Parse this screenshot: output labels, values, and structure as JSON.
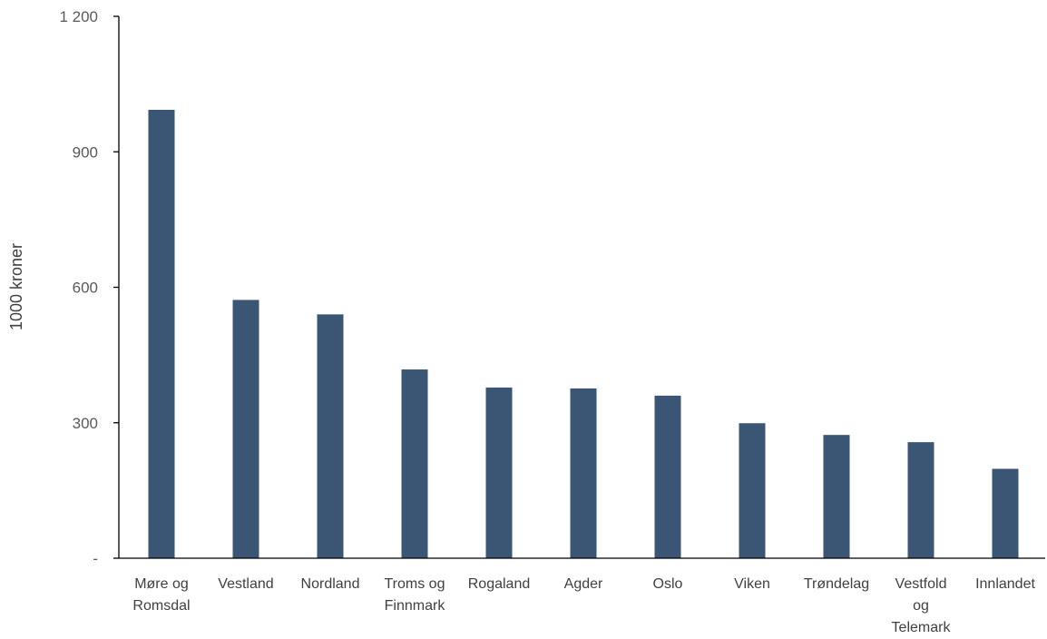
{
  "chart_data": {
    "type": "bar",
    "ylabel": "1000 kroner",
    "ylim": [
      0,
      1200
    ],
    "yticks": [
      {
        "value": 0,
        "label": "-"
      },
      {
        "value": 300,
        "label": "300"
      },
      {
        "value": 600,
        "label": "600"
      },
      {
        "value": 900,
        "label": "900"
      },
      {
        "value": 1200,
        "label": "1 200"
      }
    ],
    "categories": [
      [
        "Møre  og",
        "Romsdal"
      ],
      [
        "Vestland"
      ],
      [
        "Nordland"
      ],
      [
        "Troms og",
        "Finnmark"
      ],
      [
        "Rogaland"
      ],
      [
        "Agder"
      ],
      [
        "Oslo"
      ],
      [
        "Viken"
      ],
      [
        "Trøndelag"
      ],
      [
        "Vestfold",
        "og",
        "Telemark"
      ],
      [
        "Innlandet"
      ]
    ],
    "values": [
      993,
      572,
      540,
      418,
      378,
      376,
      360,
      299,
      273,
      257,
      198
    ],
    "bar_color": "#3b5675",
    "grid": false
  }
}
